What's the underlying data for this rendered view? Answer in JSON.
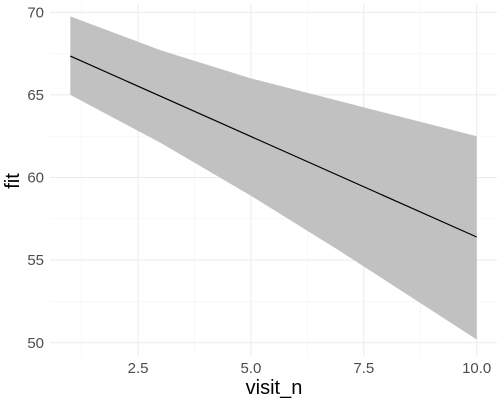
{
  "chart_data": {
    "type": "line",
    "title": "",
    "xlabel": "visit_n",
    "ylabel": "fit",
    "xlim": [
      0.55,
      10.45
    ],
    "ylim": [
      49.2,
      70.5
    ],
    "x_ticks": [
      2.5,
      5.0,
      7.5,
      10.0
    ],
    "x_tick_labels": [
      "2.5",
      "5.0",
      "7.5",
      "10.0"
    ],
    "y_ticks": [
      50,
      55,
      60,
      65,
      70
    ],
    "y_tick_labels": [
      "50",
      "55",
      "60",
      "65",
      "70"
    ],
    "grid": true,
    "legend": "none",
    "series": [
      {
        "type": "line",
        "x": [
          1,
          10
        ],
        "y": [
          67.35,
          56.4
        ],
        "color": "#000000"
      },
      {
        "type": "ribbon",
        "x": [
          1,
          3,
          5,
          7,
          10
        ],
        "ymin": [
          65.0,
          62.1,
          58.9,
          55.5,
          50.2
        ],
        "ymax": [
          69.75,
          67.7,
          66.0,
          64.6,
          62.5
        ],
        "color": "#bebebe"
      }
    ]
  }
}
